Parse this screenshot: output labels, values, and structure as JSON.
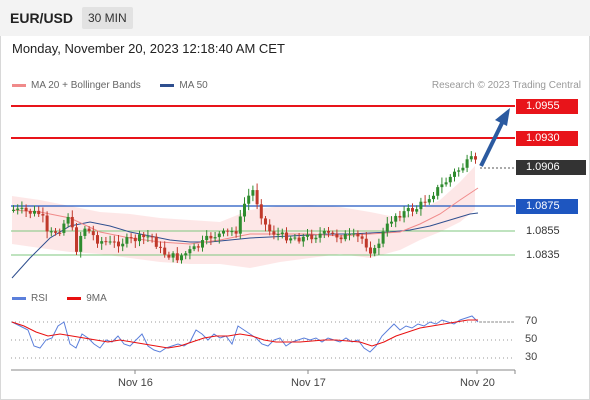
{
  "header": {
    "symbol": "EUR/USD",
    "timeframe": "30 MIN"
  },
  "datetime": "Monday, November 20, 2023 12:18:40 AM CET",
  "legend": {
    "ma20": "MA 20 + Bollinger Bands",
    "ma50": "MA 50",
    "ma20_color": "#f08a8a",
    "ma50_color": "#2f4f8f"
  },
  "credit": "Research © 2023 Trading Central",
  "levels": {
    "r2": "1.0955",
    "r1": "1.0930",
    "last": "1.0906",
    "pivot": "1.0875",
    "s1": "1.0855",
    "s2": "1.0835"
  },
  "rsi_legend": {
    "rsi": "RSI",
    "ma": "9MA",
    "rsi_color": "#5b7fdb",
    "ma_color": "#e81010"
  },
  "rsi_levels": [
    "70",
    "50",
    "30"
  ],
  "x_labels": [
    "Nov 16",
    "Nov 17",
    "Nov 20"
  ],
  "colors": {
    "up": "#2e8b2e",
    "down": "#c0392b",
    "resistance": "#e8141a",
    "pivot": "#1e56c0",
    "support": "#7fc77f",
    "band_fill": "#fde3e3",
    "arrow": "#2b5aa0"
  }
}
